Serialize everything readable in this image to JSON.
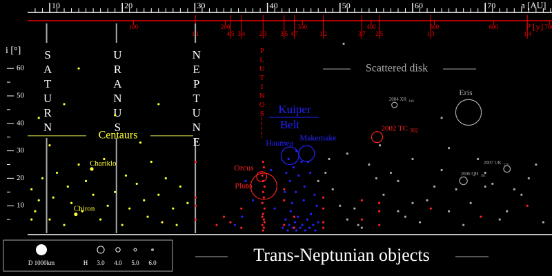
{
  "chart_data": {
    "type": "scatter",
    "title": "Trans-Neptunian objects",
    "xlabel": "a [AU]",
    "ylabel": "i [°]",
    "plabel": "P [y]",
    "xlim": [
      6.96,
      79.2
    ],
    "ylim": [
      0,
      71
    ],
    "xticks": [
      10,
      20,
      30,
      40,
      50,
      60,
      70
    ],
    "xminor": [
      8,
      9,
      11,
      12,
      13,
      14,
      15,
      16,
      17,
      18,
      19,
      21,
      22,
      23,
      24,
      25,
      26,
      27,
      28,
      29,
      31,
      32,
      33,
      34,
      35,
      36,
      37,
      38,
      39,
      41,
      42,
      43,
      44,
      45,
      46,
      47,
      48,
      49,
      51,
      52,
      53,
      54,
      55,
      56,
      57,
      58,
      59,
      61,
      62,
      63,
      64,
      65,
      66,
      67,
      68,
      69,
      71,
      72,
      73,
      74,
      75,
      76,
      77,
      78,
      79
    ],
    "yticks": [
      10,
      20,
      30,
      40,
      50,
      60
    ],
    "yminor": [
      5,
      15,
      25,
      35,
      45,
      55
    ],
    "pticks": [
      100,
      200,
      300,
      400,
      500,
      600,
      700
    ],
    "resonances": [
      {
        "value": 30.07,
        "label": "1|1"
      },
      {
        "value": 34.9,
        "label": "4|5"
      },
      {
        "value": 36.4,
        "label": "3|4"
      },
      {
        "value": 39.4,
        "label": "2|3"
      },
      {
        "value": 42.3,
        "label": "3|5"
      },
      {
        "value": 43.7,
        "label": "4|7"
      },
      {
        "value": 47.7,
        "label": "1|2"
      },
      {
        "value": 53.0,
        "label": "3|7"
      },
      {
        "value": 55.4,
        "label": "2|5"
      },
      {
        "value": 62.5,
        "label": "1|3"
      },
      {
        "value": 75.8,
        "label": "1|4"
      }
    ],
    "planets": [
      {
        "name": "SATURN",
        "a": 9.58
      },
      {
        "name": "URANUS",
        "a": 19.2
      },
      {
        "name": "NEPTUNE",
        "a": 30.07
      }
    ],
    "plutinos": {
      "label": "PLUTINOS",
      "a": 39.4
    },
    "regions": {
      "centaurs": {
        "label": "Centaurs",
        "i": 35.5
      },
      "kuiper": [
        "Kuiper",
        "Belt"
      ],
      "scattered": "Scattered disk"
    },
    "groups": [
      {
        "color": "#ffff33",
        "x": [
          7.5,
          8,
          8.5,
          9,
          10,
          10.5,
          11,
          12,
          12.5,
          13,
          14,
          14.5,
          15,
          16,
          17,
          17.5,
          18,
          19,
          20,
          20.5,
          21,
          22,
          23,
          23.5,
          24,
          25,
          25.5,
          26,
          27,
          27.5,
          28,
          29,
          8.5,
          12,
          14,
          19,
          25,
          7.5,
          10,
          22.5
        ],
        "y": [
          16,
          8,
          12,
          20,
          5,
          13,
          22,
          3,
          17,
          11,
          25,
          8,
          19,
          14,
          5,
          27,
          10,
          15,
          3,
          21,
          9,
          18,
          12,
          6,
          26,
          14,
          4,
          20,
          9,
          3,
          17,
          11,
          42,
          47,
          60,
          43,
          47,
          5,
          32,
          33
        ]
      },
      {
        "color": "#2222ff",
        "x": [
          42.1,
          42.5,
          42.8,
          43,
          43.2,
          43.5,
          43.8,
          44,
          44.2,
          44.5,
          44.8,
          45,
          45.2,
          45.5,
          45.8,
          46,
          46.3,
          46.6,
          47,
          42.4,
          43.1,
          43.6,
          44.3,
          45.1,
          45.9,
          46.5,
          42.9,
          44.7,
          43.4,
          46.8,
          41,
          40.5,
          36.5,
          35.5,
          38,
          37,
          44,
          45.6,
          43.9,
          42.6
        ],
        "y": [
          2,
          5,
          1,
          3,
          8,
          2,
          4,
          1,
          6,
          2,
          3,
          12,
          1,
          5,
          2,
          7,
          3,
          1,
          4,
          15,
          19,
          24,
          21,
          17,
          22,
          14,
          27,
          26,
          11,
          10,
          9,
          23,
          6,
          3,
          12,
          19,
          30,
          26,
          15,
          22
        ]
      },
      {
        "color": "#ff2222",
        "x": [
          39.4,
          39.3,
          39.5,
          39.4,
          39.6,
          39.3,
          39.5,
          39.4,
          39.6,
          39.4,
          39.3,
          39.5,
          39.4,
          39.5,
          39.3,
          39.6,
          30.1,
          30.1,
          30.1,
          30.1,
          36.4,
          36.4,
          34.9,
          42.3,
          42.3,
          42.3,
          43.7,
          43.7,
          47.7,
          47.7,
          47.7,
          47.7,
          53,
          53,
          55.4,
          55.4,
          55.4,
          62.5,
          75.8,
          69.4,
          33,
          34
        ],
        "y": [
          1,
          3,
          5,
          7,
          9,
          11,
          13,
          15,
          17,
          19,
          21,
          24,
          26,
          2,
          6,
          4,
          5,
          10,
          26,
          13,
          2,
          9,
          4,
          3,
          12,
          16,
          2,
          6,
          4,
          9,
          13,
          2,
          5,
          12,
          3,
          8,
          11,
          9,
          10,
          6,
          3,
          6
        ]
      },
      {
        "color": "#aaaaaa",
        "x": [
          51,
          52,
          55,
          57,
          58,
          60,
          62,
          63,
          64,
          66,
          68,
          70,
          71,
          73,
          75,
          77,
          48,
          49,
          50,
          53,
          56,
          59,
          61,
          65,
          67,
          69,
          72,
          74,
          76,
          78,
          54,
          58,
          47,
          48.5,
          52.5,
          65,
          64,
          70,
          60,
          55.5,
          50.5,
          51
        ],
        "y": [
          5,
          9,
          20,
          22,
          19,
          27,
          12,
          17,
          23,
          16,
          11,
          22,
          18,
          8,
          14,
          25,
          22,
          16,
          10,
          2,
          14,
          6,
          4,
          8,
          3,
          27,
          5,
          16,
          20,
          4,
          25,
          8,
          19,
          27,
          3,
          31,
          42,
          17,
          11,
          32,
          69,
          29
        ]
      }
    ],
    "objects": [
      {
        "name": "Eris",
        "a": 67.7,
        "i": 44,
        "d": 2326,
        "color": "#aaaaaa"
      },
      {
        "name": "Pluto",
        "a": 39.5,
        "i": 17.1,
        "d": 2377,
        "color": "#ff2222"
      },
      {
        "name": "Orcus",
        "a": 39.2,
        "i": 20.6,
        "d": 910,
        "color": "#ff2222"
      },
      {
        "name": "Haumea",
        "a": 43.1,
        "i": 28.2,
        "d": 1600,
        "color": "#2222ff"
      },
      {
        "name": "Makemake",
        "a": 45.4,
        "i": 29,
        "d": 1430,
        "color": "#2222ff"
      },
      {
        "name": "2002 TC",
        "sub": "302",
        "a": 55.1,
        "i": 35,
        "d": 1000,
        "color": "#ff2222"
      },
      {
        "name": "2004 XR",
        "sub": "190",
        "a": 57.5,
        "i": 46.7,
        "d": 500,
        "color": "#aaaaaa"
      },
      {
        "name": "2007 UK",
        "sub": "126",
        "a": 73,
        "i": 23.4,
        "d": 600,
        "color": "#aaaaaa"
      },
      {
        "name": "2006 QH",
        "sub": "181",
        "a": 67,
        "i": 19.1,
        "d": 700,
        "color": "#aaaaaa"
      },
      {
        "name": "Chariklo",
        "a": 15.8,
        "i": 23.4,
        "d": 250,
        "color": "#ffff33"
      },
      {
        "name": "Chiron",
        "a": 13.6,
        "i": 6.9,
        "d": 220,
        "color": "#ffff33"
      }
    ],
    "legend": {
      "d_label": "D 1000km",
      "d_km": 1000,
      "h_label": "H",
      "h_values": [
        {
          "value": 3,
          "label": "3.0"
        },
        {
          "value": 4,
          "label": "4.0"
        },
        {
          "value": 5,
          "label": "5.0"
        },
        {
          "value": 6,
          "label": "6.0"
        }
      ]
    }
  }
}
